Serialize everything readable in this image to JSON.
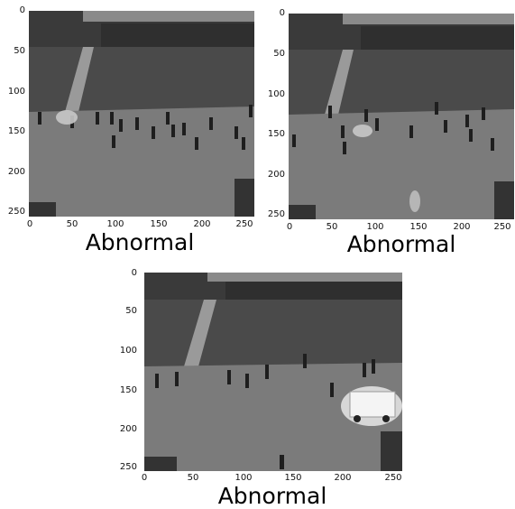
{
  "panels": [
    {
      "caption": "Abnormal",
      "x_ticks": [
        "0",
        "50",
        "100",
        "150",
        "200",
        "250"
      ],
      "y_ticks": [
        "0",
        "50",
        "100",
        "150",
        "200",
        "250"
      ]
    },
    {
      "caption": "Abnormal",
      "x_ticks": [
        "0",
        "50",
        "100",
        "150",
        "200",
        "250"
      ],
      "y_ticks": [
        "0",
        "50",
        "100",
        "150",
        "200",
        "250"
      ]
    },
    {
      "caption": "Abnormal",
      "x_ticks": [
        "0",
        "50",
        "100",
        "150",
        "200",
        "250"
      ],
      "y_ticks": [
        "0",
        "50",
        "100",
        "150",
        "200",
        "250"
      ]
    }
  ]
}
